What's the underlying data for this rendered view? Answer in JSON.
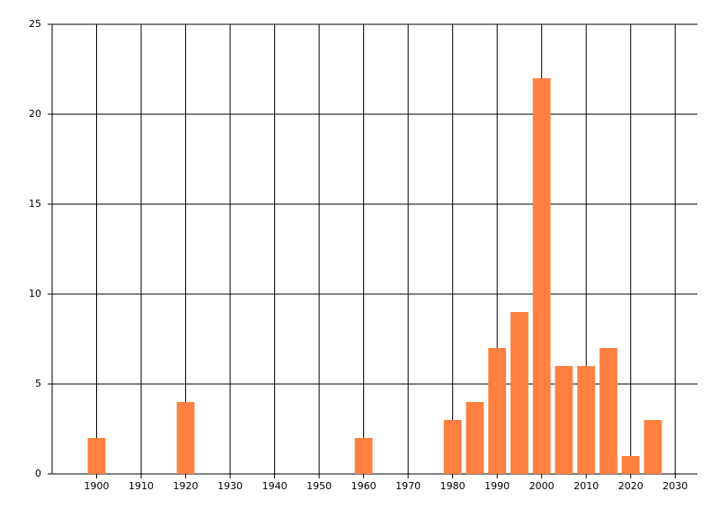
{
  "chart_data": {
    "type": "bar",
    "x": [
      1900,
      1920,
      1960,
      1980,
      1985,
      1990,
      1995,
      2000,
      2005,
      2010,
      2015,
      2020,
      2025
    ],
    "values": [
      2,
      4,
      2,
      3,
      4,
      7,
      9,
      22,
      6,
      6,
      7,
      1,
      3
    ],
    "color": "#ff8040",
    "xlim": [
      1890,
      2035
    ],
    "xticks": [
      1900,
      1910,
      1920,
      1930,
      1940,
      1950,
      1960,
      1970,
      1980,
      1990,
      2000,
      2010,
      2020,
      2030
    ],
    "ylim": [
      0,
      25
    ],
    "yticks": [
      0,
      5,
      10,
      15,
      20,
      25
    ],
    "grid": true
  }
}
